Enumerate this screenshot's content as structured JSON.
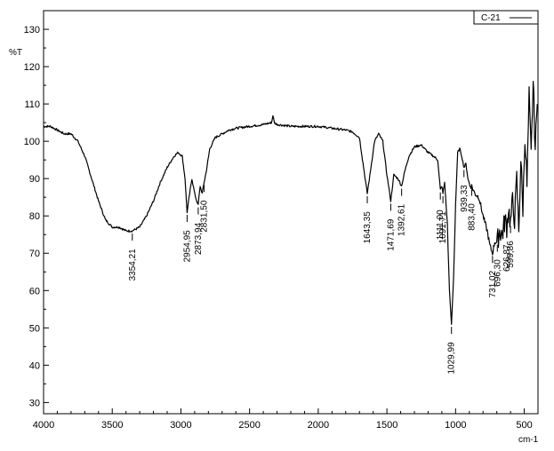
{
  "chart_data": {
    "type": "line",
    "title": "",
    "xlabel": "cm-1",
    "ylabel": "%T",
    "xlim": [
      4000,
      400
    ],
    "ylim": [
      27,
      135
    ],
    "x_reversed": true,
    "grid": false,
    "legend_position": "top-right",
    "x_ticks": [
      4000,
      3500,
      3000,
      2500,
      2000,
      1500,
      1000,
      500
    ],
    "x_tick_labels": [
      "4000",
      "3500",
      "3000",
      "2500",
      "2000",
      "1500",
      "1000",
      "500"
    ],
    "y_ticks": [
      30,
      40,
      50,
      60,
      70,
      80,
      90,
      100,
      110,
      120,
      130
    ],
    "y_tick_labels": [
      "30",
      "40",
      "50",
      "60",
      "70",
      "80",
      "90",
      "100",
      "110",
      "120",
      "130"
    ],
    "series": [
      {
        "name": "C-21",
        "color": "#000000",
        "x": [
          4000,
          3950,
          3900,
          3850,
          3800,
          3750,
          3700,
          3650,
          3600,
          3550,
          3500,
          3450,
          3400,
          3354,
          3300,
          3250,
          3200,
          3150,
          3100,
          3050,
          3020,
          2990,
          2970,
          2955,
          2940,
          2920,
          2900,
          2885,
          2874,
          2860,
          2845,
          2831,
          2815,
          2790,
          2750,
          2700,
          2650,
          2600,
          2500,
          2400,
          2340,
          2330,
          2320,
          2300,
          2200,
          2100,
          2000,
          1900,
          1800,
          1750,
          1700,
          1670,
          1643,
          1620,
          1590,
          1560,
          1530,
          1500,
          1472,
          1450,
          1420,
          1393,
          1370,
          1340,
          1300,
          1250,
          1200,
          1160,
          1130,
          1111,
          1100,
          1092,
          1080,
          1060,
          1045,
          1030,
          1015,
          1000,
          985,
          970,
          955,
          939,
          925,
          910,
          895,
          883,
          860,
          830,
          800,
          770,
          750,
          731,
          715,
          696,
          680,
          660,
          640,
          627,
          615,
          600,
          585,
          570,
          555,
          540,
          525,
          510,
          495,
          480,
          465,
          450,
          435,
          420,
          405
        ],
        "y": [
          104,
          104,
          103,
          102,
          102,
          100,
          96,
          90,
          84,
          79,
          77,
          77,
          76,
          76,
          77,
          80,
          84,
          89,
          93,
          96,
          97,
          96,
          90,
          81,
          85,
          90,
          86,
          84,
          83,
          88,
          86,
          89,
          92,
          98,
          101,
          102,
          103,
          103.5,
          104,
          104.5,
          105,
          107,
          105,
          104.5,
          104,
          104,
          104,
          103.5,
          103,
          102.5,
          101,
          93,
          86,
          92,
          100,
          102,
          100,
          91,
          84,
          91,
          90,
          88,
          92,
          96,
          98.5,
          99,
          97,
          96,
          95,
          87,
          88,
          86,
          89,
          78,
          60,
          51,
          63,
          83,
          97,
          98,
          96,
          93,
          94,
          90,
          88,
          88,
          86,
          85,
          80,
          76,
          72,
          70,
          73,
          73,
          76,
          75,
          79,
          77,
          82,
          78,
          84,
          79,
          90,
          76,
          95,
          82,
          102,
          88,
          112,
          96,
          116,
          98,
          110
        ],
        "peak_labels": [
          {
            "x": 3354,
            "y": 76,
            "label": "3354,21"
          },
          {
            "x": 2955,
            "y": 81,
            "label": "2954,95"
          },
          {
            "x": 2874,
            "y": 83,
            "label": "2873,94"
          },
          {
            "x": 2831,
            "y": 89,
            "label": "2831,50"
          },
          {
            "x": 1643,
            "y": 86,
            "label": "1643,35"
          },
          {
            "x": 1472,
            "y": 84,
            "label": "1471,69"
          },
          {
            "x": 1393,
            "y": 88,
            "label": "1392,61"
          },
          {
            "x": 1111,
            "y": 87,
            "label": "1111,00"
          },
          {
            "x": 1092,
            "y": 86,
            "label": "1091,71"
          },
          {
            "x": 1030,
            "y": 51,
            "label": "1029,99"
          },
          {
            "x": 939,
            "y": 93,
            "label": "939,33"
          },
          {
            "x": 883,
            "y": 88,
            "label": "883,40"
          },
          {
            "x": 731,
            "y": 70,
            "label": "731,02"
          },
          {
            "x": 696,
            "y": 73,
            "label": "696,30"
          },
          {
            "x": 627,
            "y": 77,
            "label": "626,87"
          },
          {
            "x": 600,
            "y": 78,
            "label": "599,86"
          }
        ]
      }
    ]
  }
}
